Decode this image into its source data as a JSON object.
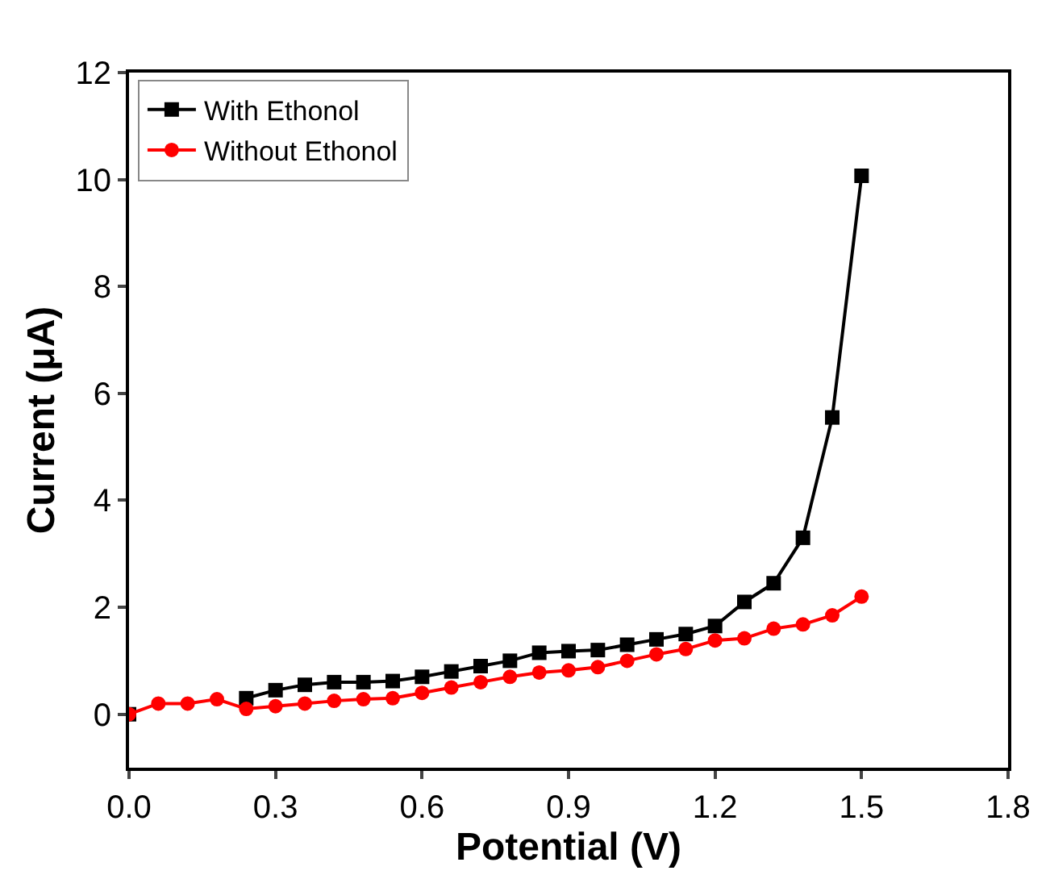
{
  "chart_data": {
    "type": "line",
    "xlabel": "Potential (V)",
    "ylabel": "Current (μA)",
    "x": [
      0,
      0.06,
      0.12,
      0.18,
      0.24,
      0.3,
      0.36,
      0.42,
      0.48,
      0.54,
      0.6,
      0.66,
      0.72,
      0.78,
      0.84,
      0.9,
      0.96,
      1.02,
      1.08,
      1.14,
      1.2,
      1.26,
      1.32,
      1.38,
      1.44,
      1.5
    ],
    "series": [
      {
        "name": "With Ethonol",
        "color": "#000000",
        "marker": "square",
        "values": [
          0,
          null,
          null,
          null,
          0.3,
          0.45,
          0.55,
          0.6,
          0.6,
          0.62,
          0.7,
          0.8,
          0.9,
          1.0,
          1.15,
          1.18,
          1.2,
          1.3,
          1.4,
          1.5,
          1.65,
          2.1,
          2.45,
          3.3,
          5.55,
          10.07
        ]
      },
      {
        "name": "Without Ethonol",
        "color": "#ff0000",
        "marker": "circle",
        "values": [
          0,
          0.2,
          0.2,
          0.28,
          0.1,
          0.15,
          0.2,
          0.25,
          0.28,
          0.3,
          0.4,
          0.5,
          0.6,
          0.7,
          0.78,
          0.82,
          0.88,
          1.0,
          1.12,
          1.22,
          1.38,
          1.42,
          1.6,
          1.68,
          1.85,
          2.2
        ]
      }
    ],
    "xlim": [
      0,
      1.8
    ],
    "xticks": [
      {
        "value": 0,
        "label": "0.0"
      },
      0.3,
      0.6,
      0.9,
      1.2,
      1.5,
      1.8
    ],
    "ylim": [
      -1,
      12
    ],
    "yticks": [
      0,
      2,
      4,
      6,
      8,
      10,
      12
    ],
    "legend": "top left"
  }
}
